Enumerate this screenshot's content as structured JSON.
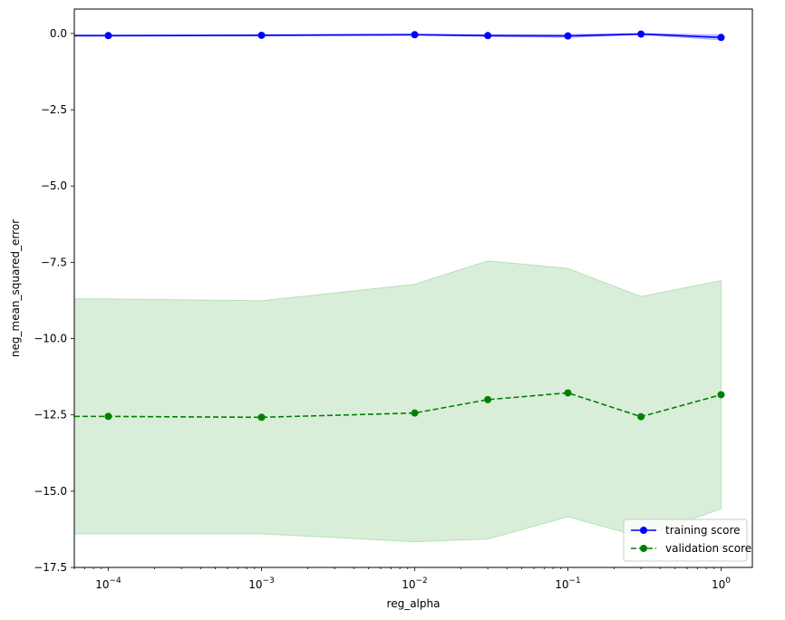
{
  "chart_data": {
    "type": "line",
    "xlabel": "reg_alpha",
    "ylabel": "neg_mean_squared_error",
    "xscale": "log",
    "xlim": [
      6e-05,
      1.6
    ],
    "ylim": [
      -17.5,
      0.8
    ],
    "x": [
      0.0001,
      0.001,
      0.01,
      0.03,
      0.1,
      0.3,
      1.0
    ],
    "x_ticks": [
      {
        "value": 0.0001,
        "base": "10",
        "exp": "−4"
      },
      {
        "value": 0.001,
        "base": "10",
        "exp": "−3"
      },
      {
        "value": 0.01,
        "base": "10",
        "exp": "−2"
      },
      {
        "value": 0.1,
        "base": "10",
        "exp": "−1"
      },
      {
        "value": 1.0,
        "base": "10",
        "exp": "0"
      }
    ],
    "y_ticks": [
      {
        "value": 0.0,
        "label": "0.0"
      },
      {
        "value": -2.5,
        "label": "−2.5"
      },
      {
        "value": -5.0,
        "label": "−5.0"
      },
      {
        "value": -7.5,
        "label": "−7.5"
      },
      {
        "value": -10.0,
        "label": "−10.0"
      },
      {
        "value": -12.5,
        "label": "−12.5"
      },
      {
        "value": -15.0,
        "label": "−15.0"
      },
      {
        "value": -17.5,
        "label": "−17.5"
      }
    ],
    "series": [
      {
        "name": "training score",
        "color": "#0000ff",
        "style": "solid",
        "values": [
          -0.07,
          -0.06,
          -0.04,
          -0.07,
          -0.08,
          -0.02,
          -0.13
        ],
        "band_upper": [
          -0.05,
          -0.04,
          -0.02,
          -0.04,
          -0.03,
          0.0,
          -0.05
        ],
        "band_lower": [
          -0.09,
          -0.08,
          -0.06,
          -0.1,
          -0.13,
          -0.04,
          -0.21
        ],
        "band_color": "#0000ff"
      },
      {
        "name": "validation score",
        "color": "#008000",
        "style": "dashed",
        "values": [
          -12.55,
          -12.58,
          -12.44,
          -12.0,
          -11.78,
          -12.56,
          -11.84
        ],
        "band_upper": [
          -8.7,
          -8.76,
          -8.22,
          -7.45,
          -7.7,
          -8.62,
          -8.1
        ],
        "band_lower": [
          -16.4,
          -16.4,
          -16.66,
          -16.57,
          -15.84,
          -16.5,
          -15.58
        ],
        "band_color": "#2ca02c"
      }
    ],
    "band_edge_x": [
      6e-05
    ],
    "legend_position": "lower-right",
    "grid": false
  }
}
